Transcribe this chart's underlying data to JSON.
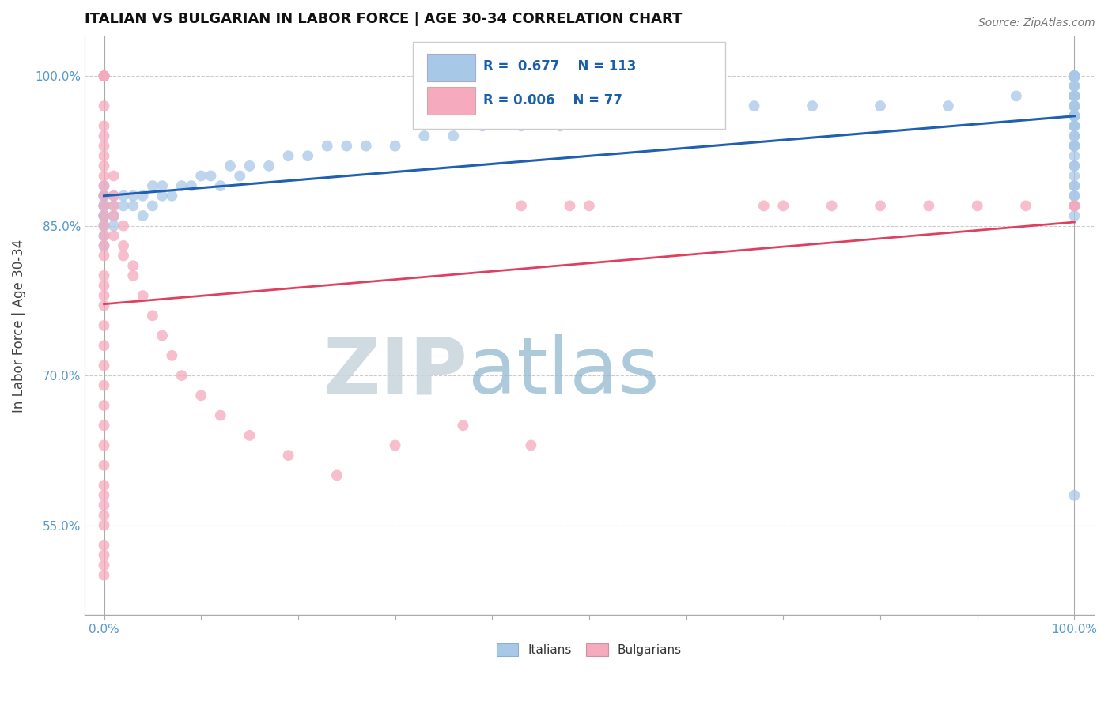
{
  "title": "ITALIAN VS BULGARIAN IN LABOR FORCE | AGE 30-34 CORRELATION CHART",
  "source": "Source: ZipAtlas.com",
  "ylabel": "In Labor Force | Age 30-34",
  "xlim": [
    -0.02,
    1.02
  ],
  "ylim": [
    0.46,
    1.04
  ],
  "y_tick_labels": [
    "55.0%",
    "70.0%",
    "85.0%",
    "100.0%"
  ],
  "y_tick_values": [
    0.55,
    0.7,
    0.85,
    1.0
  ],
  "x_tick_positions": [
    0.0,
    0.1,
    0.2,
    0.3,
    0.4,
    0.5,
    0.6,
    0.7,
    0.8,
    0.9,
    1.0
  ],
  "italian_R": 0.677,
  "italian_N": 113,
  "bulgarian_R": 0.006,
  "bulgarian_N": 77,
  "italian_color": "#a8c8e8",
  "bulgarian_color": "#f5aabe",
  "italian_line_color": "#2060b0",
  "bulgarian_line_color": "#e04060",
  "watermark_zip": "ZIP",
  "watermark_atlas": "atlas",
  "it_x": [
    0.0,
    0.0,
    0.0,
    0.0,
    0.0,
    0.0,
    0.0,
    0.0,
    0.0,
    0.0,
    0.0,
    0.0,
    0.0,
    0.0,
    0.0,
    0.0,
    0.0,
    0.01,
    0.01,
    0.01,
    0.01,
    0.02,
    0.02,
    0.03,
    0.03,
    0.04,
    0.04,
    0.05,
    0.05,
    0.06,
    0.06,
    0.07,
    0.08,
    0.09,
    0.1,
    0.11,
    0.12,
    0.13,
    0.14,
    0.15,
    0.17,
    0.19,
    0.21,
    0.23,
    0.25,
    0.27,
    0.3,
    0.33,
    0.36,
    0.39,
    0.43,
    0.47,
    0.51,
    0.56,
    0.61,
    0.67,
    0.73,
    0.8,
    0.87,
    0.94,
    1.0,
    1.0,
    1.0,
    1.0,
    1.0,
    1.0,
    1.0,
    1.0,
    1.0,
    1.0,
    1.0,
    1.0,
    1.0,
    1.0,
    1.0,
    1.0,
    1.0,
    1.0,
    1.0,
    1.0,
    1.0,
    1.0,
    1.0,
    1.0,
    1.0,
    1.0,
    1.0,
    1.0,
    1.0,
    1.0,
    1.0,
    1.0,
    1.0,
    1.0,
    1.0,
    1.0,
    1.0,
    1.0,
    1.0,
    1.0,
    1.0,
    1.0,
    1.0,
    1.0,
    1.0,
    1.0,
    1.0,
    1.0,
    1.0,
    1.0,
    1.0,
    1.0,
    1.0
  ],
  "it_y": [
    0.88,
    0.87,
    0.86,
    0.86,
    0.87,
    0.88,
    0.85,
    0.86,
    0.87,
    0.88,
    0.89,
    0.84,
    0.83,
    0.86,
    0.87,
    0.88,
    0.85,
    0.87,
    0.88,
    0.86,
    0.85,
    0.87,
    0.88,
    0.88,
    0.87,
    0.86,
    0.88,
    0.89,
    0.87,
    0.88,
    0.89,
    0.88,
    0.89,
    0.89,
    0.9,
    0.9,
    0.89,
    0.91,
    0.9,
    0.91,
    0.91,
    0.92,
    0.92,
    0.93,
    0.93,
    0.93,
    0.93,
    0.94,
    0.94,
    0.95,
    0.95,
    0.95,
    0.96,
    0.96,
    0.96,
    0.97,
    0.97,
    0.97,
    0.97,
    0.98,
    1.0,
    1.0,
    1.0,
    1.0,
    1.0,
    1.0,
    1.0,
    1.0,
    1.0,
    1.0,
    1.0,
    1.0,
    1.0,
    1.0,
    1.0,
    1.0,
    1.0,
    1.0,
    0.99,
    0.98,
    0.97,
    0.96,
    0.95,
    0.96,
    0.97,
    0.98,
    0.99,
    1.0,
    0.98,
    0.97,
    0.96,
    0.95,
    0.94,
    0.93,
    0.96,
    0.97,
    0.98,
    0.95,
    0.93,
    0.91,
    0.89,
    0.88,
    0.87,
    0.86,
    0.58,
    0.89,
    0.91,
    0.9,
    0.88,
    0.92,
    0.94,
    0.93,
    0.96
  ],
  "bg_x": [
    0.0,
    0.0,
    0.0,
    0.0,
    0.0,
    0.0,
    0.0,
    0.0,
    0.0,
    0.0,
    0.0,
    0.0,
    0.0,
    0.0,
    0.0,
    0.0,
    0.0,
    0.0,
    0.0,
    0.0,
    0.0,
    0.0,
    0.0,
    0.0,
    0.0,
    0.0,
    0.0,
    0.0,
    0.0,
    0.0,
    0.0,
    0.0,
    0.0,
    0.0,
    0.0,
    0.0,
    0.0,
    0.0,
    0.0,
    0.0,
    0.0,
    0.01,
    0.01,
    0.01,
    0.01,
    0.01,
    0.02,
    0.02,
    0.02,
    0.03,
    0.03,
    0.04,
    0.05,
    0.06,
    0.07,
    0.08,
    0.1,
    0.12,
    0.15,
    0.19,
    0.24,
    0.3,
    0.37,
    0.43,
    0.44,
    0.48,
    0.5,
    0.68,
    0.7,
    0.75,
    0.8,
    0.85,
    0.9,
    0.95,
    1.0,
    1.0,
    1.0
  ],
  "bg_y": [
    1.0,
    1.0,
    1.0,
    1.0,
    1.0,
    0.97,
    0.95,
    0.94,
    0.93,
    0.92,
    0.91,
    0.9,
    0.89,
    0.88,
    0.87,
    0.86,
    0.85,
    0.84,
    0.83,
    0.82,
    0.8,
    0.79,
    0.78,
    0.77,
    0.75,
    0.73,
    0.71,
    0.69,
    0.67,
    0.65,
    0.63,
    0.61,
    0.59,
    0.58,
    0.57,
    0.56,
    0.55,
    0.53,
    0.52,
    0.51,
    0.5,
    0.9,
    0.88,
    0.87,
    0.86,
    0.84,
    0.85,
    0.83,
    0.82,
    0.81,
    0.8,
    0.78,
    0.76,
    0.74,
    0.72,
    0.7,
    0.68,
    0.66,
    0.64,
    0.62,
    0.6,
    0.63,
    0.65,
    0.87,
    0.63,
    0.87,
    0.87,
    0.87,
    0.87,
    0.87,
    0.87,
    0.87,
    0.87,
    0.87,
    0.87,
    0.87,
    0.87
  ]
}
